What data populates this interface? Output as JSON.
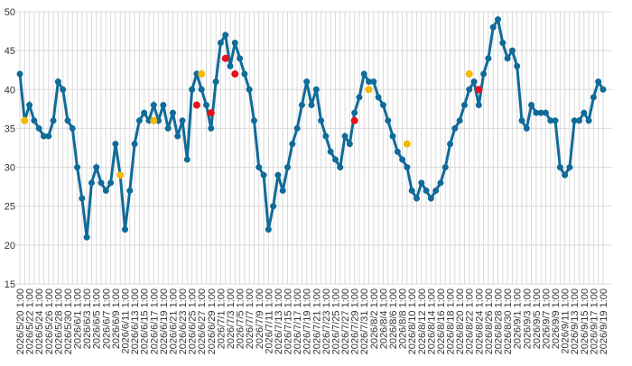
{
  "chart_data": {
    "type": "line",
    "categories": [
      "2026/5/20 1:00",
      null,
      "2026/5/22 1:00",
      null,
      "2026/5/24 1:00",
      null,
      "2026/5/26 1:00",
      null,
      "2026/5/28 1:00",
      null,
      "2026/5/30 1:00",
      null,
      "2026/6/1 1:00",
      null,
      "2026/6/3 1:00",
      null,
      "2026/6/5 1:00",
      null,
      "2026/6/7 1:00",
      null,
      "2026/6/9 1:00",
      null,
      "2026/6/11 1:00",
      null,
      "2026/6/13 1:00",
      null,
      "2026/6/15 1:00",
      null,
      "2026/6/17 1:00",
      null,
      "2026/6/19 1:00",
      null,
      "2026/6/21 1:00",
      null,
      "2026/6/23 1:00",
      null,
      "2026/6/25 1:00",
      null,
      "2026/6/27 1:00",
      null,
      "2026/6/29 1:00",
      null,
      "2026/7/1 1:00",
      null,
      "2026/7/3 1:00",
      null,
      "2026/7/5 1:00",
      null,
      "2026/7/7 1:00",
      null,
      "2026/7/9 1:00",
      null,
      "2026/7/11 1:00",
      null,
      "2026/7/13 1:00",
      null,
      "2026/7/15 1:00",
      null,
      "2026/7/17 1:00",
      null,
      "2026/7/19 1:00",
      null,
      "2026/7/21 1:00",
      null,
      "2026/7/23 1:00",
      null,
      "2026/7/25 1:00",
      null,
      "2026/7/27 1:00",
      null,
      "2026/7/29 1:00",
      null,
      "2026/7/31 1:00",
      null,
      "2026/8/2 1:00",
      null,
      "2026/8/4 1:00",
      null,
      "2026/8/6 1:00",
      null,
      "2026/8/8 1:00",
      null,
      "2026/8/10 1:00",
      null,
      "2026/8/12 1:00",
      null,
      "2026/8/14 1:00",
      null,
      "2026/8/16 1:00",
      null,
      "2026/8/18 1:00",
      null,
      "2026/8/20 1:00",
      null,
      "2026/8/22 1:00",
      null,
      "2026/8/24 1:00",
      null,
      "2026/8/26 1:00",
      null,
      "2026/8/28 1:00",
      null,
      "2026/8/30 1:00",
      null,
      "2026/9/1 1:00",
      null,
      "2026/9/3 1:00",
      null,
      "2026/9/5 1:00",
      null,
      "2026/9/7 1:00",
      null,
      "2026/9/9 1:00",
      null,
      "2026/9/11 1:00",
      null,
      "2026/9/13 1:00",
      null,
      "2026/9/15 1:00",
      null,
      "2026/9/17 1:00",
      null,
      "2026/9/19 1:00"
    ],
    "series": [
      {
        "color": "#106b98",
        "values": [
          42,
          36,
          38,
          36,
          35,
          34,
          34,
          36,
          41,
          40,
          36,
          35,
          30,
          26,
          21,
          28,
          30,
          28,
          27,
          28,
          33,
          29,
          22,
          27,
          33,
          36,
          37,
          36,
          38,
          36,
          38,
          35,
          37,
          34,
          36,
          31,
          40,
          42,
          40,
          38,
          35,
          41,
          46,
          47,
          43,
          46,
          44,
          42,
          40,
          36,
          30,
          29,
          22,
          25,
          29,
          27,
          30,
          33,
          35,
          38,
          41,
          38,
          40,
          36,
          34,
          32,
          31,
          30,
          34,
          33,
          37,
          39,
          42,
          41,
          41,
          39,
          38,
          36,
          34,
          32,
          31,
          30,
          27,
          26,
          28,
          27,
          26,
          27,
          28,
          30,
          33,
          35,
          36,
          38,
          40,
          41,
          38,
          42,
          44,
          48,
          49,
          46,
          44,
          45,
          43,
          36,
          35,
          38,
          37,
          37,
          37,
          36,
          36,
          30,
          29,
          30,
          36,
          36,
          37,
          36,
          39,
          41,
          40
        ]
      },
      {
        "color": "#f5b800",
        "values": [
          null,
          36,
          null,
          null,
          null,
          null,
          null,
          null,
          null,
          null,
          null,
          null,
          null,
          null,
          null,
          null,
          null,
          null,
          null,
          null,
          null,
          29,
          null,
          null,
          null,
          null,
          null,
          null,
          36,
          null,
          null,
          null,
          null,
          null,
          null,
          null,
          null,
          null,
          42,
          null,
          null,
          null,
          null,
          null,
          null,
          null,
          null,
          null,
          null,
          null,
          null,
          null,
          null,
          null,
          null,
          null,
          null,
          null,
          null,
          null,
          null,
          null,
          null,
          null,
          null,
          null,
          null,
          null,
          null,
          null,
          null,
          null,
          null,
          40,
          null,
          null,
          null,
          null,
          null,
          null,
          null,
          33,
          null,
          null,
          null,
          null,
          null,
          null,
          null,
          null,
          null,
          null,
          null,
          null,
          42,
          null,
          null,
          null,
          null,
          null,
          null,
          null,
          null,
          null,
          null,
          null,
          null,
          null,
          null,
          null,
          null,
          null,
          null,
          null,
          null,
          null,
          null,
          null,
          null,
          null,
          null,
          null,
          null
        ]
      },
      {
        "color": "#e8101a",
        "values": [
          null,
          null,
          null,
          null,
          null,
          null,
          null,
          null,
          null,
          null,
          null,
          null,
          null,
          null,
          null,
          null,
          null,
          null,
          null,
          null,
          null,
          null,
          null,
          null,
          null,
          null,
          null,
          null,
          null,
          null,
          null,
          null,
          null,
          null,
          null,
          null,
          null,
          38,
          null,
          null,
          37,
          null,
          null,
          44,
          null,
          42,
          null,
          null,
          null,
          null,
          null,
          null,
          null,
          null,
          null,
          null,
          null,
          null,
          null,
          null,
          null,
          null,
          null,
          null,
          null,
          null,
          null,
          null,
          null,
          null,
          36,
          null,
          null,
          null,
          null,
          null,
          null,
          null,
          null,
          null,
          null,
          null,
          null,
          null,
          null,
          null,
          null,
          null,
          null,
          null,
          null,
          null,
          null,
          null,
          null,
          null,
          40,
          null,
          null,
          null,
          null,
          null,
          null,
          null,
          null,
          null,
          null,
          null,
          null,
          null,
          null,
          null,
          null,
          null,
          null,
          null,
          null,
          null,
          null,
          null,
          null,
          null,
          null
        ]
      }
    ],
    "ylim": [
      15,
      50
    ],
    "yticks": [
      15,
      20,
      25,
      30,
      35,
      40,
      45,
      50
    ],
    "grid": true
  }
}
